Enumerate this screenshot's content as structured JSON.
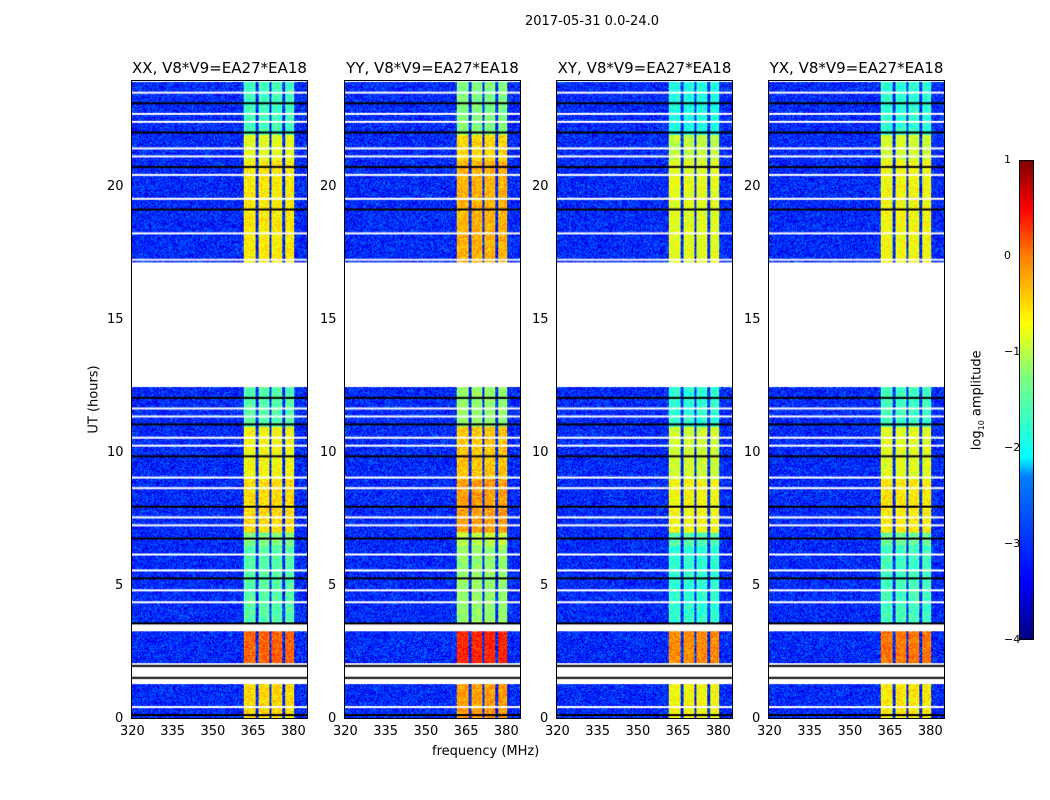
{
  "title": "2017-05-31 0.0-24.0",
  "ylabel": "UT (hours)",
  "xlabel": "frequency (MHz)",
  "colorbar": {
    "label": "log10 amplitude",
    "label_main": "log",
    "label_sub": "10",
    "label_rest": " amplitude",
    "range": [
      -4,
      1
    ],
    "ticks": [
      "1",
      "0",
      "−1",
      "−2",
      "−3",
      "−4"
    ],
    "tick_values": [
      1,
      0,
      -1,
      -2,
      -3,
      -4
    ]
  },
  "chart_data": {
    "type": "heatmap",
    "xlim": [
      320,
      386
    ],
    "ylim": [
      0,
      24
    ],
    "xticks": [
      "320",
      "335",
      "350",
      "365",
      "380"
    ],
    "xtick_values": [
      320,
      335,
      350,
      365,
      380
    ],
    "yticks": [
      "0",
      "5",
      "10",
      "15",
      "20"
    ],
    "ytick_values": [
      0,
      5,
      10,
      15,
      20
    ],
    "background_level": -3.2,
    "bands_mhz": [
      [
        362,
        366.5
      ],
      [
        367.5,
        371.5
      ],
      [
        372.5,
        376.5
      ],
      [
        377.5,
        381
      ]
    ],
    "segments": [
      {
        "t": [
          0,
          1.3
        ],
        "level": -0.7
      },
      {
        "t": [
          1.3,
          2.1
        ],
        "level": null
      },
      {
        "t": [
          2.1,
          3.3
        ],
        "level": -0.1
      },
      {
        "t": [
          3.3,
          3.6
        ],
        "level": null
      },
      {
        "t": [
          3.6,
          6.5
        ],
        "level": -1.7
      },
      {
        "t": [
          6.5,
          7.0
        ],
        "level": -1.5
      },
      {
        "t": [
          7.0,
          9.0
        ],
        "level": -0.7
      },
      {
        "t": [
          9.0,
          11.0
        ],
        "level": -0.9
      },
      {
        "t": [
          11.0,
          12.5
        ],
        "level": -1.7
      },
      {
        "t": [
          12.5,
          17.2
        ],
        "level": null
      },
      {
        "t": [
          17.2,
          21.0
        ],
        "level": -0.8
      },
      {
        "t": [
          21.0,
          22.0
        ],
        "level": -1.0
      },
      {
        "t": [
          22.0,
          24.0
        ],
        "level": -1.8
      }
    ],
    "flagged_rows": [
      0.15,
      0.45,
      1.4,
      1.55,
      1.7,
      1.9,
      2.0,
      3.35,
      3.5,
      3.6,
      4.4,
      4.85,
      5.3,
      5.6,
      6.2,
      6.8,
      7.3,
      7.6,
      8.0,
      8.7,
      9.1,
      9.9,
      10.3,
      10.6,
      11.1,
      11.4,
      11.7,
      12.1,
      17.3,
      18.3,
      19.2,
      19.6,
      20.5,
      20.8,
      21.2,
      21.5,
      22.1,
      22.5,
      22.8,
      23.2,
      23.6
    ],
    "panels": [
      {
        "title": "XX, V8*V9=EA27*EA18",
        "gain": 0
      },
      {
        "title": "YY, V8*V9=EA27*EA18",
        "gain": 0.3
      },
      {
        "title": "XY, V8*V9=EA27*EA18",
        "gain": -0.2
      },
      {
        "title": "YX, V8*V9=EA27*EA18",
        "gain": -0.1
      }
    ]
  }
}
